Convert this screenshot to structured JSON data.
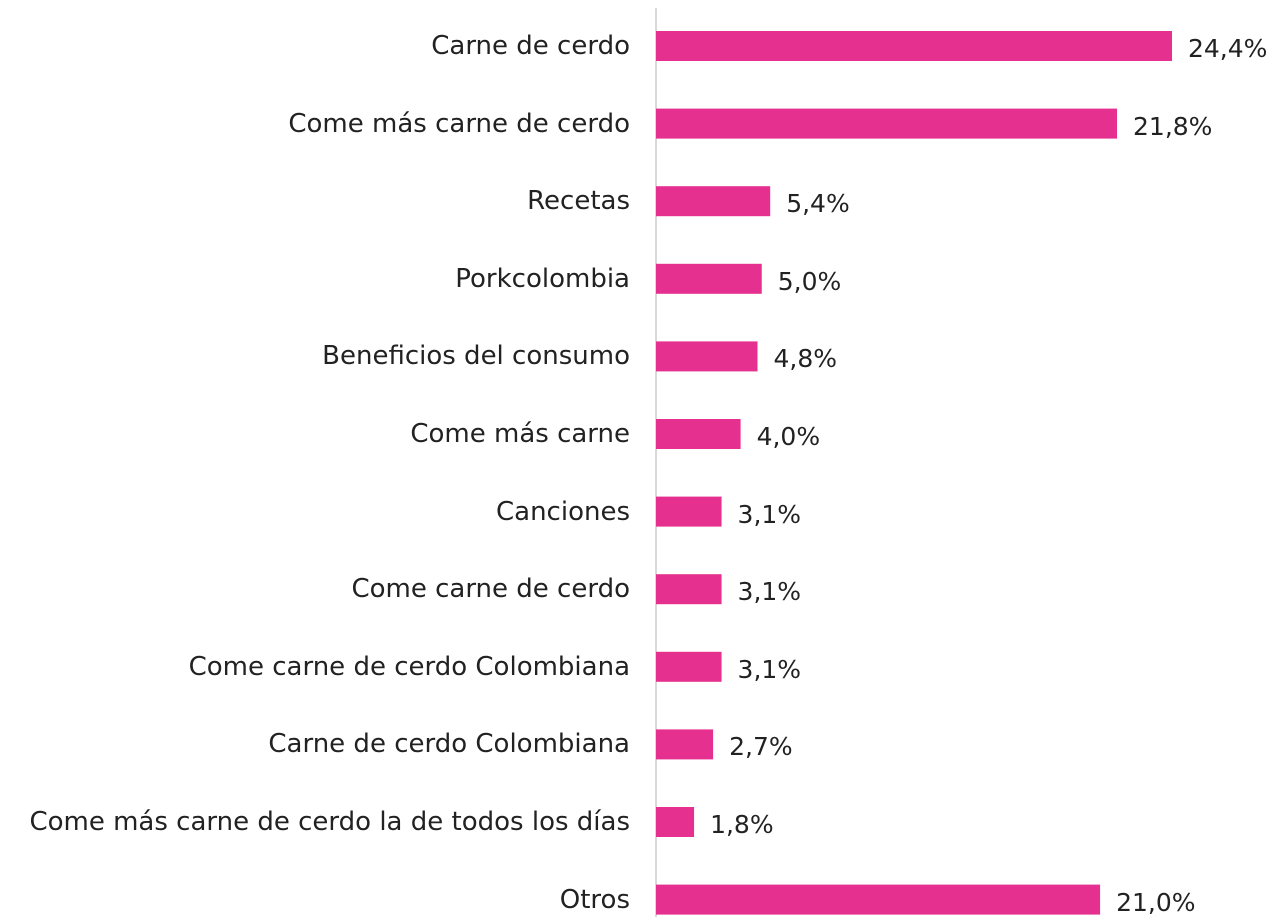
{
  "chart_data": {
    "type": "bar",
    "orientation": "horizontal",
    "color": "#e6308f",
    "categories": [
      "Carne de cerdo",
      "Come más carne de cerdo",
      "Recetas",
      "Porkcolombia",
      "Beneficios del consumo",
      "Come más carne",
      "Canciones",
      "Come carne de cerdo",
      "Come carne de cerdo Colombiana",
      "Carne de cerdo Colombiana",
      "Come más carne de cerdo la de todos los días",
      "Otros"
    ],
    "values": [
      24.4,
      21.8,
      5.4,
      5.0,
      4.8,
      4.0,
      3.1,
      3.1,
      3.1,
      2.7,
      1.8,
      21.0
    ],
    "value_labels": [
      "24,4%",
      "21,8%",
      "5,4%",
      "5,0%",
      "4,8%",
      "4,0%",
      "3,1%",
      "3,1%",
      "3,1%",
      "2,7%",
      "1,8%",
      "21,0%"
    ]
  }
}
